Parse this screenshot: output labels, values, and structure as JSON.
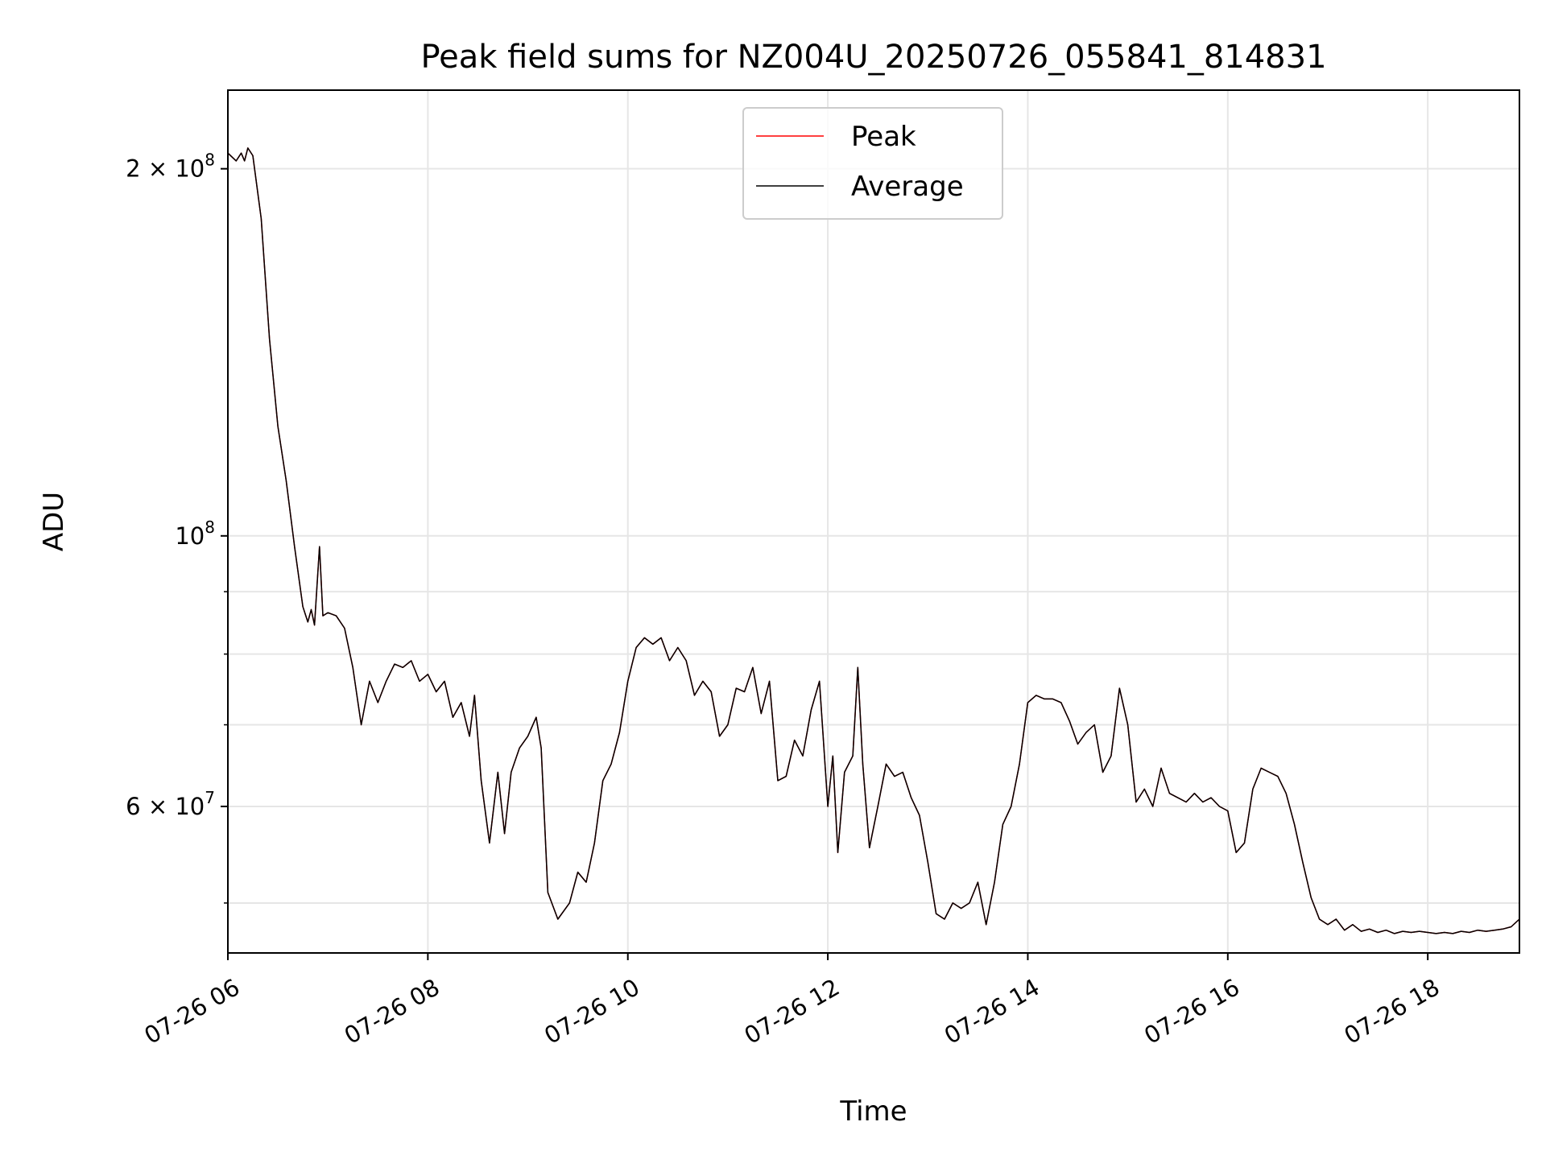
{
  "chart_data": {
    "type": "line",
    "title": "Peak field sums for NZ004U_20250726_055841_814831",
    "xlabel": "Time",
    "ylabel": "ADU",
    "x_range": [
      "2025-07-26T06:00",
      "2025-07-26T18:55"
    ],
    "ylim": [
      45500000,
      232000000
    ],
    "y_scale": "log",
    "grid": true,
    "legend_position": "top-center",
    "x_ticks": [
      {
        "t": "2025-07-26T06:00",
        "label": "07-26 06"
      },
      {
        "t": "2025-07-26T08:00",
        "label": "07-26 08"
      },
      {
        "t": "2025-07-26T10:00",
        "label": "07-26 10"
      },
      {
        "t": "2025-07-26T12:00",
        "label": "07-26 12"
      },
      {
        "t": "2025-07-26T14:00",
        "label": "07-26 14"
      },
      {
        "t": "2025-07-26T16:00",
        "label": "07-26 16"
      },
      {
        "t": "2025-07-26T18:00",
        "label": "07-26 18"
      }
    ],
    "y_major_ticks": [
      {
        "value": 60000000,
        "mantissa": "6",
        "exp": "7"
      },
      {
        "value": 100000000,
        "mantissa": "",
        "exp": "8"
      },
      {
        "value": 200000000,
        "mantissa": "2",
        "exp": "8"
      }
    ],
    "y_minor_ticks": [
      50000000,
      70000000,
      80000000,
      90000000
    ],
    "series": [
      {
        "name": "Peak",
        "color": "#ff0000",
        "points": [
          [
            "2025-07-26T06:00",
            206000000
          ],
          [
            "2025-07-26T06:05",
            203000000
          ],
          [
            "2025-07-26T06:08",
            206000000
          ],
          [
            "2025-07-26T06:10",
            203000000
          ],
          [
            "2025-07-26T06:12",
            208000000
          ],
          [
            "2025-07-26T06:15",
            205000000
          ],
          [
            "2025-07-26T06:20",
            182000000
          ],
          [
            "2025-07-26T06:25",
            145000000
          ],
          [
            "2025-07-26T06:30",
            123000000
          ],
          [
            "2025-07-26T06:35",
            111000000
          ],
          [
            "2025-07-26T06:40",
            98000000
          ],
          [
            "2025-07-26T06:45",
            87500000
          ],
          [
            "2025-07-26T06:48",
            85000000
          ],
          [
            "2025-07-26T06:50",
            87000000
          ],
          [
            "2025-07-26T06:52",
            84500000
          ],
          [
            "2025-07-26T06:55",
            98000000
          ],
          [
            "2025-07-26T06:57",
            86000000
          ],
          [
            "2025-07-26T07:00",
            86500000
          ],
          [
            "2025-07-26T07:05",
            86000000
          ],
          [
            "2025-07-26T07:10",
            84000000
          ],
          [
            "2025-07-26T07:15",
            78000000
          ],
          [
            "2025-07-26T07:20",
            70000000
          ],
          [
            "2025-07-26T07:25",
            76000000
          ],
          [
            "2025-07-26T07:30",
            73000000
          ],
          [
            "2025-07-26T07:35",
            76000000
          ],
          [
            "2025-07-26T07:40",
            78500000
          ],
          [
            "2025-07-26T07:45",
            78000000
          ],
          [
            "2025-07-26T07:50",
            79000000
          ],
          [
            "2025-07-26T07:55",
            76000000
          ],
          [
            "2025-07-26T08:00",
            77000000
          ],
          [
            "2025-07-26T08:05",
            74500000
          ],
          [
            "2025-07-26T08:10",
            76000000
          ],
          [
            "2025-07-26T08:15",
            71000000
          ],
          [
            "2025-07-26T08:20",
            73000000
          ],
          [
            "2025-07-26T08:25",
            68500000
          ],
          [
            "2025-07-26T08:28",
            74000000
          ],
          [
            "2025-07-26T08:32",
            63000000
          ],
          [
            "2025-07-26T08:37",
            56000000
          ],
          [
            "2025-07-26T08:42",
            64000000
          ],
          [
            "2025-07-26T08:46",
            57000000
          ],
          [
            "2025-07-26T08:50",
            64000000
          ],
          [
            "2025-07-26T08:55",
            67000000
          ],
          [
            "2025-07-26T09:00",
            68500000
          ],
          [
            "2025-07-26T09:05",
            71000000
          ],
          [
            "2025-07-26T09:08",
            67000000
          ],
          [
            "2025-07-26T09:12",
            51000000
          ],
          [
            "2025-07-26T09:18",
            48500000
          ],
          [
            "2025-07-26T09:25",
            50000000
          ],
          [
            "2025-07-26T09:30",
            53000000
          ],
          [
            "2025-07-26T09:35",
            52000000
          ],
          [
            "2025-07-26T09:40",
            56000000
          ],
          [
            "2025-07-26T09:45",
            63000000
          ],
          [
            "2025-07-26T09:50",
            65000000
          ],
          [
            "2025-07-26T09:55",
            69000000
          ],
          [
            "2025-07-26T10:00",
            76000000
          ],
          [
            "2025-07-26T10:05",
            81000000
          ],
          [
            "2025-07-26T10:10",
            82500000
          ],
          [
            "2025-07-26T10:15",
            81500000
          ],
          [
            "2025-07-26T10:20",
            82500000
          ],
          [
            "2025-07-26T10:25",
            79000000
          ],
          [
            "2025-07-26T10:30",
            81000000
          ],
          [
            "2025-07-26T10:35",
            79000000
          ],
          [
            "2025-07-26T10:40",
            74000000
          ],
          [
            "2025-07-26T10:45",
            76000000
          ],
          [
            "2025-07-26T10:50",
            74500000
          ],
          [
            "2025-07-26T10:55",
            68500000
          ],
          [
            "2025-07-26T11:00",
            70000000
          ],
          [
            "2025-07-26T11:05",
            75000000
          ],
          [
            "2025-07-26T11:10",
            74500000
          ],
          [
            "2025-07-26T11:15",
            78000000
          ],
          [
            "2025-07-26T11:20",
            71500000
          ],
          [
            "2025-07-26T11:25",
            76000000
          ],
          [
            "2025-07-26T11:30",
            63000000
          ],
          [
            "2025-07-26T11:35",
            63500000
          ],
          [
            "2025-07-26T11:40",
            68000000
          ],
          [
            "2025-07-26T11:45",
            66000000
          ],
          [
            "2025-07-26T11:50",
            72000000
          ],
          [
            "2025-07-26T11:55",
            76000000
          ],
          [
            "2025-07-26T12:00",
            60000000
          ],
          [
            "2025-07-26T12:03",
            66000000
          ],
          [
            "2025-07-26T12:06",
            55000000
          ],
          [
            "2025-07-26T12:10",
            64000000
          ],
          [
            "2025-07-26T12:15",
            66000000
          ],
          [
            "2025-07-26T12:18",
            78000000
          ],
          [
            "2025-07-26T12:21",
            65000000
          ],
          [
            "2025-07-26T12:25",
            55500000
          ],
          [
            "2025-07-26T12:30",
            60000000
          ],
          [
            "2025-07-26T12:35",
            65000000
          ],
          [
            "2025-07-26T12:40",
            63500000
          ],
          [
            "2025-07-26T12:45",
            64000000
          ],
          [
            "2025-07-26T12:50",
            61000000
          ],
          [
            "2025-07-26T12:55",
            59000000
          ],
          [
            "2025-07-26T13:00",
            54000000
          ],
          [
            "2025-07-26T13:05",
            49000000
          ],
          [
            "2025-07-26T13:10",
            48500000
          ],
          [
            "2025-07-26T13:15",
            50000000
          ],
          [
            "2025-07-26T13:20",
            49500000
          ],
          [
            "2025-07-26T13:25",
            50000000
          ],
          [
            "2025-07-26T13:30",
            52000000
          ],
          [
            "2025-07-26T13:35",
            48000000
          ],
          [
            "2025-07-26T13:40",
            52000000
          ],
          [
            "2025-07-26T13:45",
            58000000
          ],
          [
            "2025-07-26T13:50",
            60000000
          ],
          [
            "2025-07-26T13:55",
            65000000
          ],
          [
            "2025-07-26T14:00",
            73000000
          ],
          [
            "2025-07-26T14:05",
            74000000
          ],
          [
            "2025-07-26T14:10",
            73500000
          ],
          [
            "2025-07-26T14:15",
            73500000
          ],
          [
            "2025-07-26T14:20",
            73000000
          ],
          [
            "2025-07-26T14:25",
            70500000
          ],
          [
            "2025-07-26T14:30",
            67500000
          ],
          [
            "2025-07-26T14:35",
            69000000
          ],
          [
            "2025-07-26T14:40",
            70000000
          ],
          [
            "2025-07-26T14:45",
            64000000
          ],
          [
            "2025-07-26T14:50",
            66000000
          ],
          [
            "2025-07-26T14:55",
            75000000
          ],
          [
            "2025-07-26T15:00",
            70000000
          ],
          [
            "2025-07-26T15:05",
            60500000
          ],
          [
            "2025-07-26T15:10",
            62000000
          ],
          [
            "2025-07-26T15:15",
            60000000
          ],
          [
            "2025-07-26T15:20",
            64500000
          ],
          [
            "2025-07-26T15:25",
            61500000
          ],
          [
            "2025-07-26T15:30",
            61000000
          ],
          [
            "2025-07-26T15:35",
            60500000
          ],
          [
            "2025-07-26T15:40",
            61500000
          ],
          [
            "2025-07-26T15:45",
            60500000
          ],
          [
            "2025-07-26T15:50",
            61000000
          ],
          [
            "2025-07-26T15:55",
            60000000
          ],
          [
            "2025-07-26T16:00",
            59500000
          ],
          [
            "2025-07-26T16:05",
            55000000
          ],
          [
            "2025-07-26T16:10",
            56000000
          ],
          [
            "2025-07-26T16:15",
            62000000
          ],
          [
            "2025-07-26T16:20",
            64500000
          ],
          [
            "2025-07-26T16:25",
            64000000
          ],
          [
            "2025-07-26T16:30",
            63500000
          ],
          [
            "2025-07-26T16:35",
            61500000
          ],
          [
            "2025-07-26T16:40",
            58000000
          ],
          [
            "2025-07-26T16:45",
            54000000
          ],
          [
            "2025-07-26T16:50",
            50500000
          ],
          [
            "2025-07-26T16:55",
            48500000
          ],
          [
            "2025-07-26T17:00",
            48000000
          ],
          [
            "2025-07-26T17:05",
            48500000
          ],
          [
            "2025-07-26T17:10",
            47500000
          ],
          [
            "2025-07-26T17:15",
            48000000
          ],
          [
            "2025-07-26T17:20",
            47400000
          ],
          [
            "2025-07-26T17:25",
            47600000
          ],
          [
            "2025-07-26T17:30",
            47300000
          ],
          [
            "2025-07-26T17:35",
            47500000
          ],
          [
            "2025-07-26T17:40",
            47200000
          ],
          [
            "2025-07-26T17:45",
            47400000
          ],
          [
            "2025-07-26T17:50",
            47300000
          ],
          [
            "2025-07-26T17:55",
            47400000
          ],
          [
            "2025-07-26T18:00",
            47300000
          ],
          [
            "2025-07-26T18:05",
            47200000
          ],
          [
            "2025-07-26T18:10",
            47300000
          ],
          [
            "2025-07-26T18:15",
            47200000
          ],
          [
            "2025-07-26T18:20",
            47400000
          ],
          [
            "2025-07-26T18:25",
            47300000
          ],
          [
            "2025-07-26T18:30",
            47500000
          ],
          [
            "2025-07-26T18:35",
            47400000
          ],
          [
            "2025-07-26T18:40",
            47500000
          ],
          [
            "2025-07-26T18:45",
            47600000
          ],
          [
            "2025-07-26T18:50",
            47800000
          ],
          [
            "2025-07-26T18:55",
            48500000
          ]
        ]
      },
      {
        "name": "Average",
        "color": "#000000",
        "points": []
      }
    ]
  }
}
